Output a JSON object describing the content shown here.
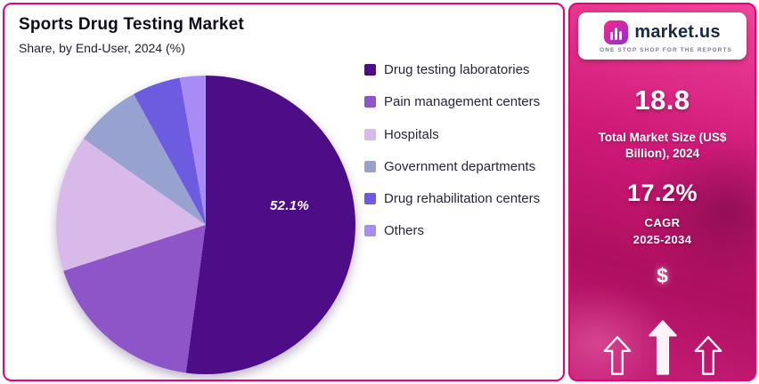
{
  "header": {
    "title": "Sports Drug Testing Market",
    "subtitle": "Share, by End-User, 2024 (%)"
  },
  "chart_data": {
    "type": "pie",
    "title": "Sports Drug Testing Market",
    "subtitle": "Share, by End-User, 2024 (%)",
    "unit": "%",
    "label_visible": "52.1%",
    "legend_position": "right",
    "slices": [
      {
        "name": "Drug testing laboratories",
        "value": 52.1,
        "color": "#4C0D86"
      },
      {
        "name": "Pain management centers",
        "value": 17.9,
        "color": "#8D55C8"
      },
      {
        "name": "Hospitals",
        "value": 14.8,
        "color": "#D9B8EA"
      },
      {
        "name": "Government departments",
        "value": 7.2,
        "color": "#98A2D0"
      },
      {
        "name": "Drug rehabilitation centers",
        "value": 5.2,
        "color": "#6E5CE0"
      },
      {
        "name": "Others",
        "value": 2.8,
        "color": "#A98BF5"
      }
    ]
  },
  "side_panel": {
    "brand": {
      "name": "market.us",
      "tagline": "ONE STOP SHOP FOR THE REPORTS"
    },
    "market_size_value": "18.8",
    "market_size_label": "Total Market Size (US$ Billion), 2024",
    "cagr_value": "17.2%",
    "cagr_label_line1": "CAGR",
    "cagr_label_line2": "2025-2034",
    "dollar_symbol": "$"
  },
  "colors": {
    "frame_border": "#E6007E",
    "panel_gradient_top": "#F0459C",
    "panel_gradient_bottom": "#C81E78",
    "title_text": "#0D0D1A"
  }
}
